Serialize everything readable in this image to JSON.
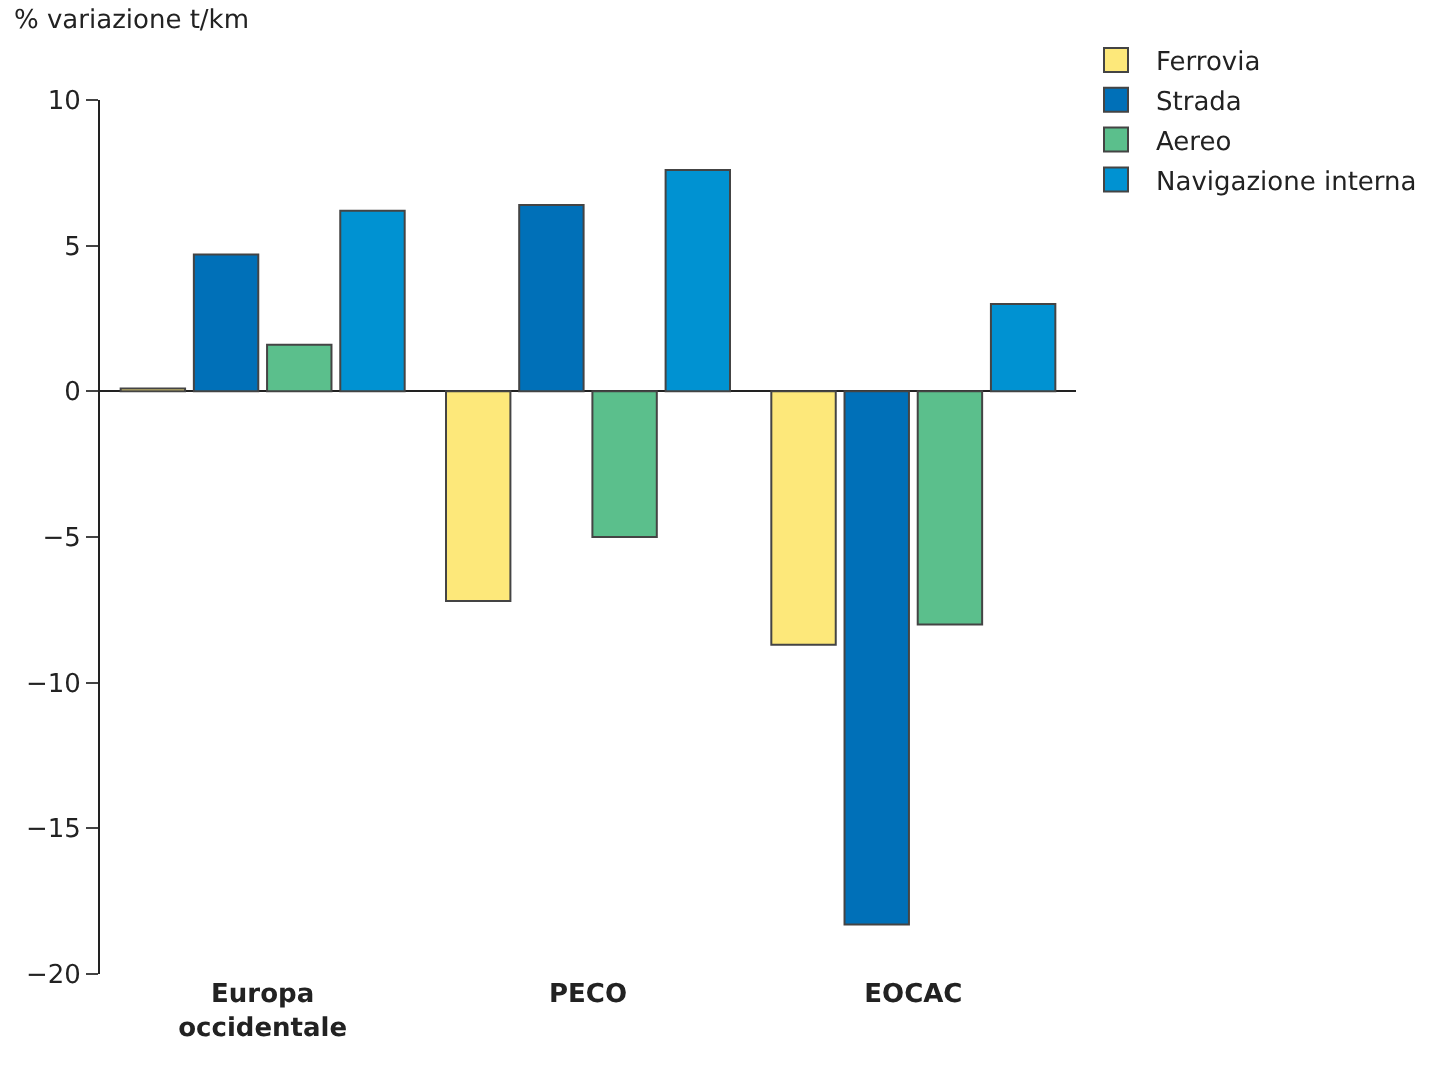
{
  "chart_data": {
    "type": "bar",
    "ylabel": "% variazione t/km",
    "categories": [
      "Europa occidentale",
      "PECO",
      "EOCAC"
    ],
    "series": [
      {
        "name": "Ferrovia",
        "color": "#fde87a",
        "values": [
          0.1,
          -7.2,
          -8.7
        ]
      },
      {
        "name": "Strada",
        "color": "#0070b8",
        "values": [
          4.7,
          6.4,
          -18.3
        ]
      },
      {
        "name": "Aereo",
        "color": "#5bbf8c",
        "values": [
          1.6,
          -5.0,
          -8.0
        ]
      },
      {
        "name": "Navigazione interna",
        "color": "#0092d2",
        "values": [
          6.2,
          7.6,
          3.0
        ]
      }
    ],
    "ylim": [
      -20,
      10
    ],
    "yticks": [
      {
        "value": -20,
        "label": "−20"
      },
      {
        "value": -15,
        "label": "−15"
      },
      {
        "value": -10,
        "label": "−10"
      },
      {
        "value": -5,
        "label": "−5"
      },
      0,
      5,
      10
    ],
    "legend": "top right"
  }
}
